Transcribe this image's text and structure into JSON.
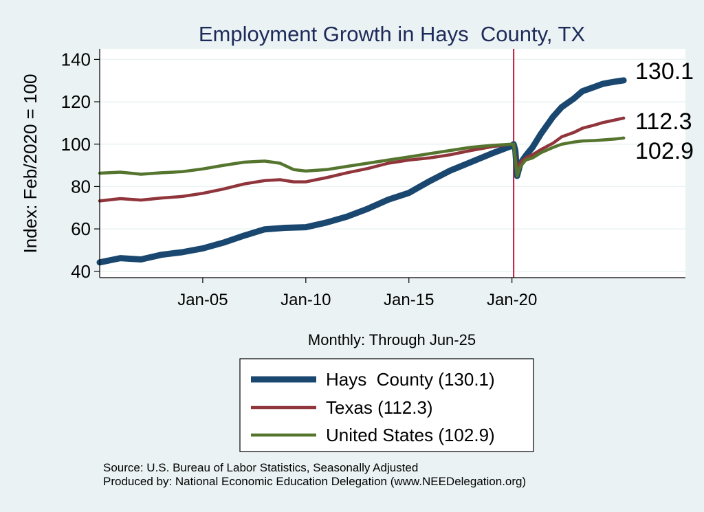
{
  "chart_data": {
    "type": "line",
    "title": "Employment Growth in Hays  County, TX",
    "ylabel": "Index: Feb/2020 = 100",
    "xlabel": "Monthly: Through Jun-25",
    "ylim": [
      37,
      145
    ],
    "yticks": [
      40,
      60,
      80,
      100,
      120,
      140
    ],
    "x_range": [
      "2000-01",
      "2028-06"
    ],
    "xticks": [
      {
        "label": "Jan-05",
        "date": "2005-01"
      },
      {
        "label": "Jan-10",
        "date": "2010-01"
      },
      {
        "label": "Jan-15",
        "date": "2015-01"
      },
      {
        "label": "Jan-20",
        "date": "2020-01"
      }
    ],
    "reference_line": {
      "date": "2020-02",
      "color": "#c0143c"
    },
    "grid": "horizontal",
    "legend_position": "bottom",
    "series": [
      {
        "name": "Hays  County (130.1)",
        "color": "#1a476f",
        "end_label": "130.1",
        "points": [
          [
            "2000-01",
            44.2
          ],
          [
            "2001-01",
            46.2
          ],
          [
            "2002-01",
            45.6
          ],
          [
            "2003-01",
            47.8
          ],
          [
            "2004-01",
            49.0
          ],
          [
            "2005-01",
            50.8
          ],
          [
            "2006-01",
            53.5
          ],
          [
            "2007-01",
            56.8
          ],
          [
            "2008-01",
            59.8
          ],
          [
            "2009-01",
            60.5
          ],
          [
            "2010-01",
            60.8
          ],
          [
            "2011-01",
            63.0
          ],
          [
            "2012-01",
            65.8
          ],
          [
            "2013-01",
            69.5
          ],
          [
            "2014-01",
            73.8
          ],
          [
            "2015-01",
            77.0
          ],
          [
            "2016-01",
            82.5
          ],
          [
            "2017-01",
            87.5
          ],
          [
            "2018-01",
            91.5
          ],
          [
            "2019-01",
            95.5
          ],
          [
            "2020-01",
            99.2
          ],
          [
            "2020-02",
            100.0
          ],
          [
            "2020-03",
            97.0
          ],
          [
            "2020-04",
            85.0
          ],
          [
            "2020-06",
            91.0
          ],
          [
            "2020-09",
            94.5
          ],
          [
            "2021-01",
            98.5
          ],
          [
            "2021-06",
            105.0
          ],
          [
            "2022-01",
            113.0
          ],
          [
            "2022-06",
            117.5
          ],
          [
            "2023-01",
            121.5
          ],
          [
            "2023-06",
            125.0
          ],
          [
            "2024-01",
            127.0
          ],
          [
            "2024-06",
            128.5
          ],
          [
            "2025-01",
            129.5
          ],
          [
            "2025-06",
            130.1
          ]
        ]
      },
      {
        "name": "Texas (112.3)",
        "color": "#90353b",
        "end_label": "112.3",
        "points": [
          [
            "2000-01",
            73.2
          ],
          [
            "2001-01",
            74.3
          ],
          [
            "2002-01",
            73.6
          ],
          [
            "2003-01",
            74.6
          ],
          [
            "2004-01",
            75.3
          ],
          [
            "2005-01",
            76.8
          ],
          [
            "2006-01",
            78.8
          ],
          [
            "2007-01",
            81.2
          ],
          [
            "2008-01",
            82.8
          ],
          [
            "2008-10",
            83.2
          ],
          [
            "2009-06",
            82.2
          ],
          [
            "2010-01",
            82.2
          ],
          [
            "2011-01",
            84.2
          ],
          [
            "2012-01",
            86.5
          ],
          [
            "2013-01",
            88.5
          ],
          [
            "2014-01",
            91.0
          ],
          [
            "2015-01",
            92.5
          ],
          [
            "2016-01",
            93.5
          ],
          [
            "2017-01",
            95.0
          ],
          [
            "2018-01",
            97.0
          ],
          [
            "2019-01",
            98.8
          ],
          [
            "2020-01",
            100.0
          ],
          [
            "2020-02",
            100.0
          ],
          [
            "2020-04",
            87.5
          ],
          [
            "2020-06",
            91.5
          ],
          [
            "2020-09",
            93.5
          ],
          [
            "2021-01",
            95.0
          ],
          [
            "2021-06",
            97.5
          ],
          [
            "2022-01",
            100.5
          ],
          [
            "2022-06",
            103.5
          ],
          [
            "2023-01",
            105.5
          ],
          [
            "2023-06",
            107.5
          ],
          [
            "2024-01",
            109.0
          ],
          [
            "2024-06",
            110.2
          ],
          [
            "2025-01",
            111.4
          ],
          [
            "2025-06",
            112.3
          ]
        ]
      },
      {
        "name": "United States (102.9)",
        "color": "#55752f",
        "end_label": "102.9",
        "points": [
          [
            "2000-01",
            86.3
          ],
          [
            "2001-01",
            86.8
          ],
          [
            "2002-01",
            85.8
          ],
          [
            "2003-01",
            86.5
          ],
          [
            "2004-01",
            87.0
          ],
          [
            "2005-01",
            88.3
          ],
          [
            "2006-01",
            90.0
          ],
          [
            "2007-01",
            91.5
          ],
          [
            "2008-01",
            92.0
          ],
          [
            "2008-10",
            91.0
          ],
          [
            "2009-06",
            88.0
          ],
          [
            "2010-01",
            87.3
          ],
          [
            "2011-01",
            88.0
          ],
          [
            "2012-01",
            89.5
          ],
          [
            "2013-01",
            91.0
          ],
          [
            "2014-01",
            92.5
          ],
          [
            "2015-01",
            94.0
          ],
          [
            "2016-01",
            95.5
          ],
          [
            "2017-01",
            97.0
          ],
          [
            "2018-01",
            98.5
          ],
          [
            "2019-01",
            99.4
          ],
          [
            "2020-01",
            100.0
          ],
          [
            "2020-02",
            100.0
          ],
          [
            "2020-04",
            85.0
          ],
          [
            "2020-06",
            89.5
          ],
          [
            "2020-09",
            92.5
          ],
          [
            "2021-01",
            93.5
          ],
          [
            "2021-06",
            96.0
          ],
          [
            "2022-01",
            98.5
          ],
          [
            "2022-06",
            100.0
          ],
          [
            "2023-01",
            101.0
          ],
          [
            "2023-06",
            101.5
          ],
          [
            "2024-01",
            101.7
          ],
          [
            "2024-06",
            102.0
          ],
          [
            "2025-01",
            102.4
          ],
          [
            "2025-06",
            102.9
          ]
        ]
      }
    ]
  },
  "source_line": "Source: U.S. Bureau of Labor Statistics, Seasonally Adjusted",
  "produced_line": "Produced by: National Economic Education Delegation (www.NEEDelegation.org)"
}
